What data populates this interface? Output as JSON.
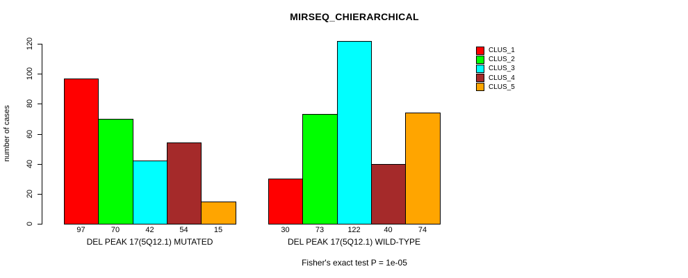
{
  "chart_data": {
    "type": "bar",
    "title": "MIRSEQ_CHIERARCHICAL",
    "ylabel": "number of cases",
    "xlabel": "",
    "ylim": [
      0,
      120
    ],
    "yticks": [
      0,
      20,
      40,
      60,
      80,
      100,
      120
    ],
    "grid": false,
    "legend_position": "right",
    "categories": [
      "DEL PEAK 17(5Q12.1) MUTATED",
      "DEL PEAK 17(5Q12.1) WILD-TYPE"
    ],
    "series": [
      {
        "name": "CLUS_1",
        "color": "#FF0000",
        "values": [
          97,
          30
        ]
      },
      {
        "name": "CLUS_2",
        "color": "#00FF00",
        "values": [
          70,
          73
        ]
      },
      {
        "name": "CLUS_3",
        "color": "#00FFFF",
        "values": [
          42,
          122
        ]
      },
      {
        "name": "CLUS_4",
        "color": "#A52A2A",
        "values": [
          54,
          40
        ]
      },
      {
        "name": "CLUS_5",
        "color": "#FFA500",
        "values": [
          15,
          74
        ]
      }
    ],
    "bar_value_labels": true,
    "annotation": "Fisher's exact test P = 1e-05"
  }
}
